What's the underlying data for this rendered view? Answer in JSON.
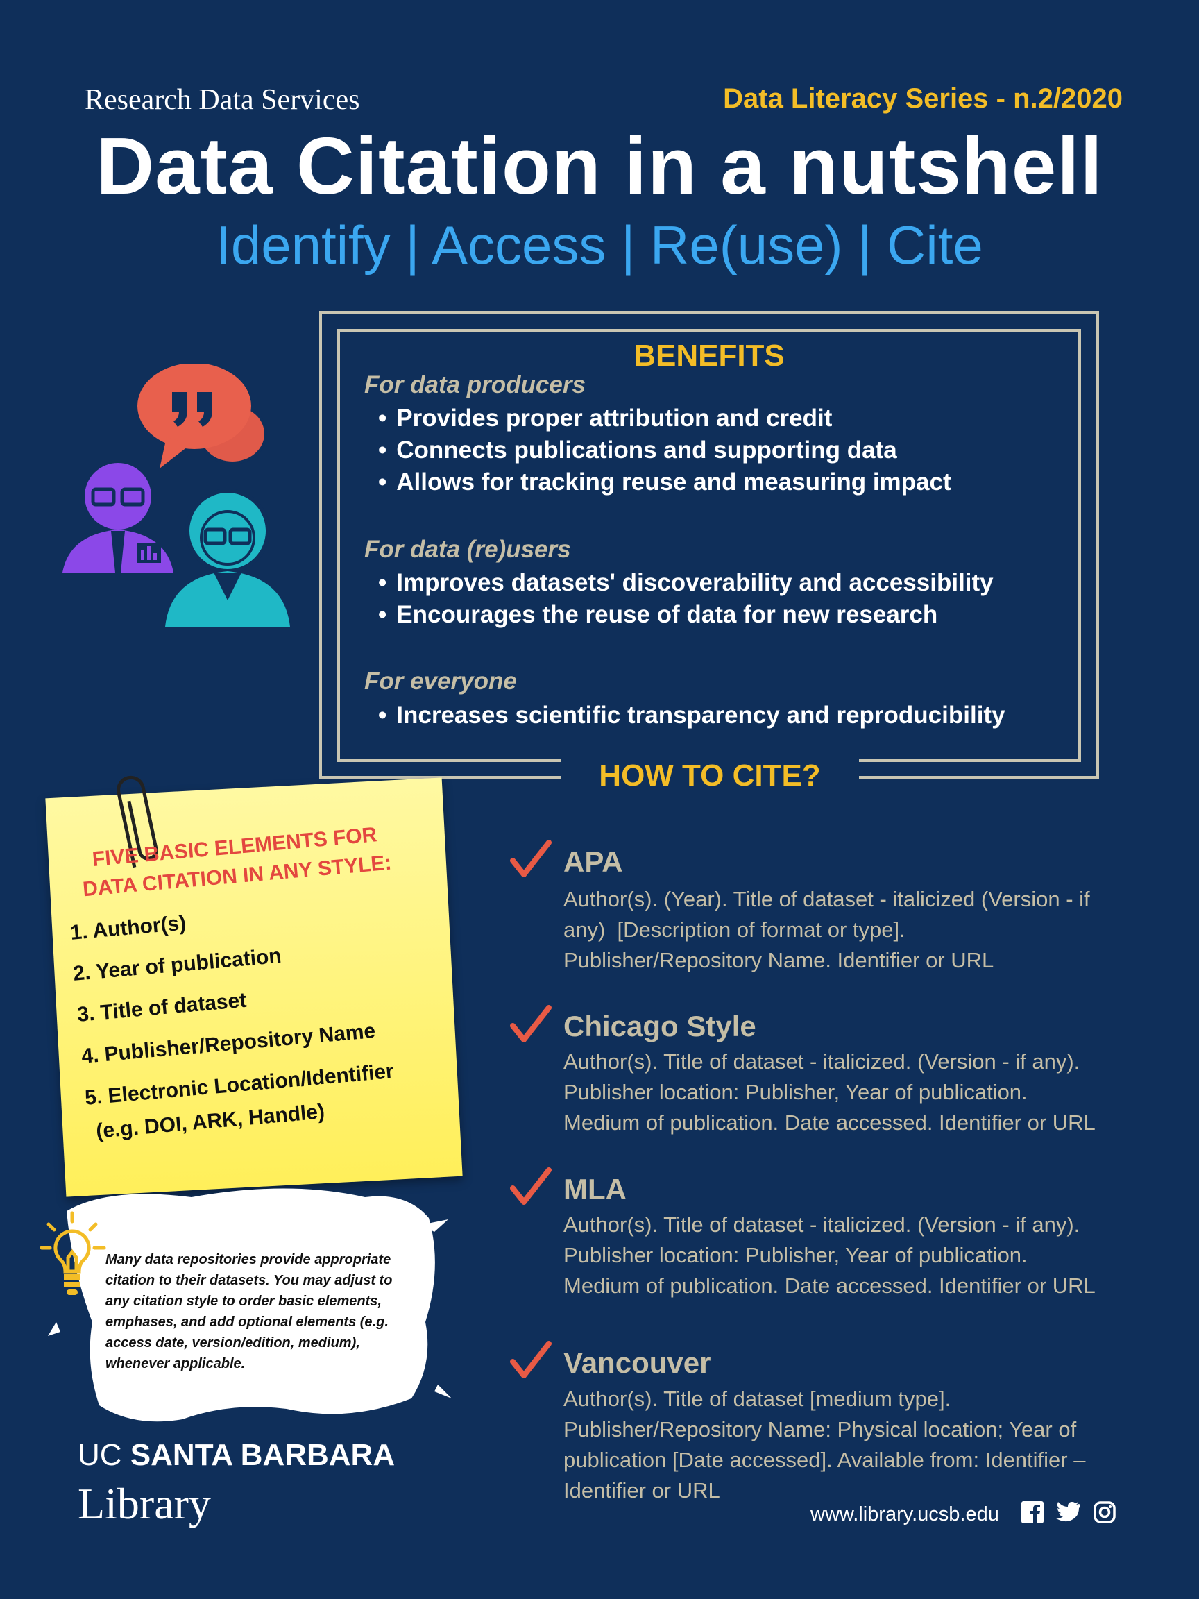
{
  "header": {
    "org": "Research Data Services",
    "series": "Data Literacy Series - n.2/2020",
    "title": "Data Citation in a nutshell",
    "subtitle": "Identify | Access | Re(use) | Cite"
  },
  "benefits": {
    "heading": "BENEFITS",
    "groups": [
      {
        "label": "For data producers",
        "items": [
          "Provides proper attribution and credit",
          "Connects publications and supporting data",
          "Allows for tracking reuse and measuring impact"
        ]
      },
      {
        "label": "For data (re)users",
        "items": [
          "Improves datasets' discoverability and accessibility",
          "Encourages the reuse of data for new research"
        ]
      },
      {
        "label": "For everyone",
        "items": [
          "Increases scientific transparency and reproducibility"
        ]
      }
    ]
  },
  "how_to_cite": {
    "heading": "HOW TO CITE?",
    "styles": [
      {
        "name": "APA",
        "lines": [
          "Author(s). (Year). Title of dataset - italicized (Version - if",
          "any)  [Description of format or type].",
          "Publisher/Repository Name. Identifier or URL"
        ]
      },
      {
        "name": "Chicago Style",
        "lines": [
          "Author(s). Title of dataset - italicized. (Version - if any).",
          "Publisher location: Publisher, Year of publication.",
          "Medium of publication. Date accessed. Identifier or URL"
        ]
      },
      {
        "name": "MLA",
        "lines": [
          "Author(s). Title of dataset - italicized. (Version - if any).",
          "Publisher location: Publisher, Year of publication.",
          "Medium of publication. Date accessed. Identifier or URL"
        ]
      },
      {
        "name": "Vancouver",
        "lines": [
          "Author(s). Title of dataset [medium type].",
          "Publisher/Repository Name: Physical location; Year of",
          "publication [Date accessed]. Available from: Identifier –",
          "Identifier or URL"
        ]
      }
    ]
  },
  "note": {
    "title_line1": "FIVE BASIC ELEMENTS FOR",
    "title_line2": "DATA CITATION IN ANY STYLE:",
    "items": [
      "1. Author(s)",
      "2. Year of publication",
      "3. Title of dataset",
      "4. Publisher/Repository Name",
      "5. Electronic Location/Identifier",
      "(e.g. DOI, ARK, Handle)"
    ]
  },
  "tip": {
    "text": "Many data repositories provide appropriate citation to their datasets. You may adjust to any citation style to order basic elements, emphases, and add optional elements (e.g. access date, version/edition, medium), whenever applicable."
  },
  "footer": {
    "uc": "UC",
    "santa_barbara": "SANTA BARBARA",
    "library": "Library",
    "website": "www.library.ucsb.edu"
  },
  "colors": {
    "background": "#0f2f5a",
    "accent_yellow": "#f3bd27",
    "accent_blue": "#3ba7f0",
    "check_red": "#e85a45",
    "beige": "#c5bea6"
  }
}
